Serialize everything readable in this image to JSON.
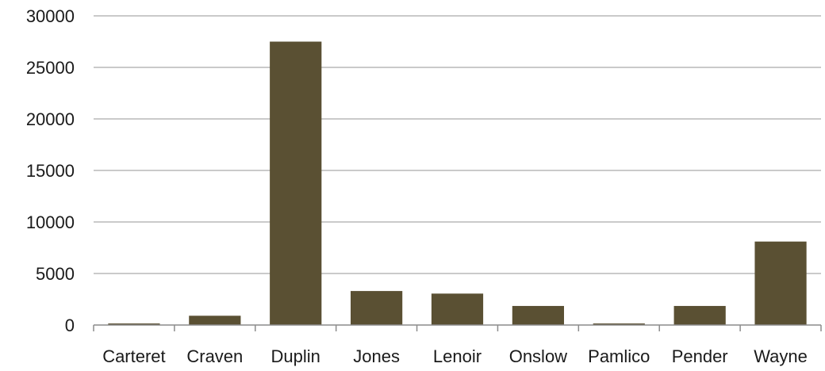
{
  "chart_data": {
    "type": "bar",
    "title": "",
    "xlabel": "",
    "ylabel": "",
    "categories": [
      "Carteret",
      "Craven",
      "Duplin",
      "Jones",
      "Lenoir",
      "Onslow",
      "Pamlico",
      "Pender",
      "Wayne"
    ],
    "values": [
      150,
      900,
      27500,
      3300,
      3050,
      1850,
      150,
      1850,
      8100
    ],
    "ylim": [
      0,
      30000
    ],
    "yticks": [
      0,
      5000,
      10000,
      15000,
      20000,
      25000,
      30000
    ],
    "grid": true,
    "legend": "none",
    "bar_color": "#5a5033"
  }
}
